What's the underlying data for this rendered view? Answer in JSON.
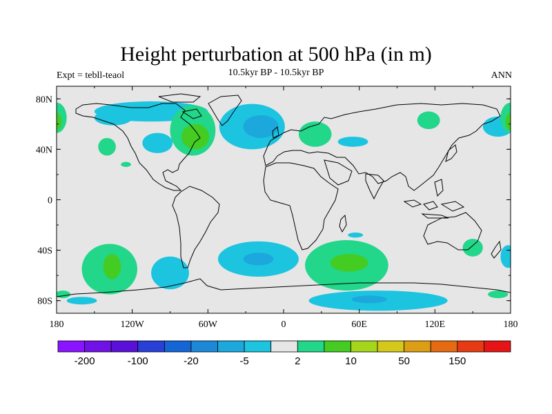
{
  "map": {
    "title": "Height perturbation at 500 hPa (in m)",
    "left_string": "Expt = tebll-teaol",
    "center_string": "10.5kyr BP - 10.5kyr BP",
    "right_string": "ANN",
    "lat_labels": [
      "80N",
      "40N",
      "0",
      "40S",
      "80S"
    ],
    "lat_values": [
      80,
      40,
      0,
      -40,
      -80
    ],
    "lon_labels": [
      "180",
      "120W",
      "60W",
      "0",
      "60E",
      "120E",
      "180"
    ],
    "lon_values": [
      -180,
      -120,
      -60,
      0,
      60,
      120,
      180
    ],
    "lon_range": [
      -180,
      180
    ],
    "lat_range": [
      -90,
      90
    ],
    "land_fill": "#e6e6e6",
    "ocean_fill": "#e6e6e6",
    "coastline_color": "#000000"
  },
  "colorbar": {
    "colors": [
      "#8a14ff",
      "#7012e6",
      "#5a10d8",
      "#2840d8",
      "#1466d6",
      "#1c88d8",
      "#1ca8dc",
      "#1cc4e0",
      "#e6e6e6",
      "#22d68a",
      "#44cc22",
      "#a6d61c",
      "#d4c81a",
      "#dc9e14",
      "#e66a12",
      "#e63a12",
      "#e61414"
    ],
    "labels": [
      "-200",
      "-100",
      "-20",
      "-5",
      "2",
      "10",
      "50",
      "150"
    ],
    "label_boxes": [
      1,
      3,
      5,
      7,
      9,
      11,
      13,
      15
    ]
  },
  "anomalies": [
    {
      "name": "neg",
      "color": "#1cc4e0",
      "lon": -105,
      "lat": 70,
      "rx": 45,
      "ry": 8
    },
    {
      "name": "neg",
      "color": "#1cc4e0",
      "lon": -135,
      "lat": 65,
      "rx": 15,
      "ry": 6
    },
    {
      "name": "neg",
      "color": "#1cc4e0",
      "lon": -25,
      "lat": 58,
      "rx": 26,
      "ry": 18
    },
    {
      "name": "neg",
      "color": "#1ca8dc",
      "lon": -18,
      "lat": 58,
      "rx": 14,
      "ry": 9
    },
    {
      "name": "neg",
      "color": "#1cc4e0",
      "lon": -100,
      "lat": 45,
      "rx": 12,
      "ry": 8
    },
    {
      "name": "neg",
      "color": "#1cc4e0",
      "lon": 55,
      "lat": 46,
      "rx": 12,
      "ry": 4
    },
    {
      "name": "neg",
      "color": "#1cc4e0",
      "lon": 170,
      "lat": 58,
      "rx": 12,
      "ry": 8
    },
    {
      "name": "neg",
      "color": "#1cc4e0",
      "lon": -20,
      "lat": -47,
      "rx": 32,
      "ry": 14
    },
    {
      "name": "neg",
      "color": "#1ca8dc",
      "lon": -20,
      "lat": -47,
      "rx": 12,
      "ry": 5
    },
    {
      "name": "neg",
      "color": "#1cc4e0",
      "lon": -90,
      "lat": -58,
      "rx": 15,
      "ry": 13
    },
    {
      "name": "neg",
      "color": "#1cc4e0",
      "lon": 75,
      "lat": -80,
      "rx": 55,
      "ry": 8
    },
    {
      "name": "neg",
      "color": "#1ca8dc",
      "lon": 68,
      "lat": -79,
      "rx": 14,
      "ry": 3
    },
    {
      "name": "neg",
      "color": "#1cc4e0",
      "lon": 178,
      "lat": -45,
      "rx": 6,
      "ry": 9
    },
    {
      "name": "neg",
      "color": "#1cc4e0",
      "lon": 57,
      "lat": -28,
      "rx": 6,
      "ry": 2
    },
    {
      "name": "neg",
      "color": "#1cc4e0",
      "lon": -160,
      "lat": -80,
      "rx": 12,
      "ry": 3
    },
    {
      "name": "pos",
      "color": "#22d68a",
      "lon": -72,
      "lat": 55,
      "rx": 18,
      "ry": 20
    },
    {
      "name": "pos",
      "color": "#44cc22",
      "lon": -70,
      "lat": 50,
      "rx": 11,
      "ry": 10
    },
    {
      "name": "pos",
      "color": "#22d68a",
      "lon": 25,
      "lat": 52,
      "rx": 13,
      "ry": 10
    },
    {
      "name": "pos",
      "color": "#22d68a",
      "lon": -180,
      "lat": 65,
      "rx": 8,
      "ry": 12
    },
    {
      "name": "pos",
      "color": "#44cc22",
      "lon": -180,
      "lat": 62,
      "rx": 4,
      "ry": 7
    },
    {
      "name": "pos",
      "color": "#22d68a",
      "lon": 180,
      "lat": 65,
      "rx": 8,
      "ry": 12
    },
    {
      "name": "pos",
      "color": "#44cc22",
      "lon": 180,
      "lat": 62,
      "rx": 4,
      "ry": 7
    },
    {
      "name": "pos",
      "color": "#22d68a",
      "lon": 115,
      "lat": 63,
      "rx": 9,
      "ry": 7
    },
    {
      "name": "pos",
      "color": "#22d68a",
      "lon": -140,
      "lat": 42,
      "rx": 7,
      "ry": 7
    },
    {
      "name": "pos",
      "color": "#22d68a",
      "lon": -125,
      "lat": 28,
      "rx": 4,
      "ry": 2
    },
    {
      "name": "pos",
      "color": "#22d68a",
      "lon": -138,
      "lat": -55,
      "rx": 22,
      "ry": 20
    },
    {
      "name": "pos",
      "color": "#44cc22",
      "lon": -136,
      "lat": -53,
      "rx": 7,
      "ry": 10
    },
    {
      "name": "pos",
      "color": "#22d68a",
      "lon": 50,
      "lat": -52,
      "rx": 33,
      "ry": 20
    },
    {
      "name": "pos",
      "color": "#44cc22",
      "lon": 52,
      "lat": -50,
      "rx": 15,
      "ry": 7
    },
    {
      "name": "pos",
      "color": "#22d68a",
      "lon": 150,
      "lat": -38,
      "rx": 8,
      "ry": 7
    },
    {
      "name": "pos",
      "color": "#22d68a",
      "lon": -175,
      "lat": -75,
      "rx": 6,
      "ry": 3
    },
    {
      "name": "pos",
      "color": "#22d68a",
      "lon": 170,
      "lat": -75,
      "rx": 8,
      "ry": 3
    }
  ]
}
